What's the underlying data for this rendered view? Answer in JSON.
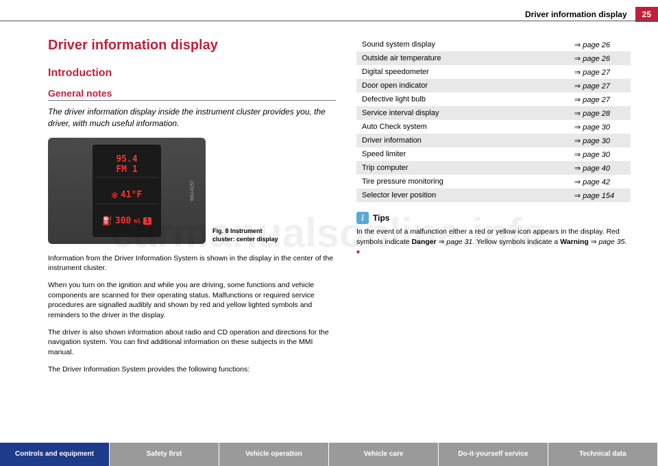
{
  "header": {
    "title": "Driver information display",
    "page_number": "25"
  },
  "main": {
    "h1": "Driver information display",
    "h2": "Introduction",
    "h3": "General notes",
    "intro": "The driver information display inside the instrument cluster provides you, the driver, with much useful information.",
    "cluster": {
      "radio_freq": "95.4",
      "radio_band": "FM 1",
      "temp": "41°F",
      "odo": "300",
      "odo_unit": "mi",
      "gear": "1",
      "side_label": "B8J-0257"
    },
    "fig_caption_num": "Fig. 8",
    "fig_caption_text": "Instrument cluster: center display",
    "p1": "Information from the Driver Information System is shown in the display in the center of the instrument cluster.",
    "p2": "When you turn on the ignition and while you are driving, some functions and vehicle components are scanned for their operating status. Malfunctions or required service procedures are signalled audibly and shown by red and yellow lighted symbols and reminders to the driver in the display.",
    "p3": "The driver is also shown information about radio and CD operation and directions for the navigation system. You can find additional information on these subjects in the MMI manual.",
    "p4": "The Driver Information System provides the following functions:"
  },
  "refs": [
    {
      "label": "Sound system display",
      "page": "page 26"
    },
    {
      "label": "Outside air temperature",
      "page": "page 26"
    },
    {
      "label": "Digital speedometer",
      "page": "page 27"
    },
    {
      "label": "Door open indicator",
      "page": "page 27"
    },
    {
      "label": "Defective light bulb",
      "page": "page 27"
    },
    {
      "label": "Service interval display",
      "page": "page 28"
    },
    {
      "label": "Auto Check system",
      "page": "page 30"
    },
    {
      "label": "Driver information",
      "page": "page 30"
    },
    {
      "label": "Speed limiter",
      "page": "page 30"
    },
    {
      "label": "Trip computer",
      "page": "page 40"
    },
    {
      "label": "Tire pressure monitoring",
      "page": "page 42"
    },
    {
      "label": "Selector lever position",
      "page": "page 154"
    }
  ],
  "tips": {
    "title": "Tips",
    "text_pre": "In the event of a malfunction either a red or yellow icon appears in the display. Red symbols indicate ",
    "danger": "Danger",
    "ref1": "page 31",
    "mid": ". Yellow symbols indicate a ",
    "warning": "Warning",
    "ref2": "page 35",
    "end": "."
  },
  "footer": {
    "tabs": [
      "Controls and equipment",
      "Safety first",
      "Vehicle operation",
      "Vehicle care",
      "Do-it-yourself service",
      "Technical data"
    ]
  },
  "watermark": "carmanualsonline.info"
}
